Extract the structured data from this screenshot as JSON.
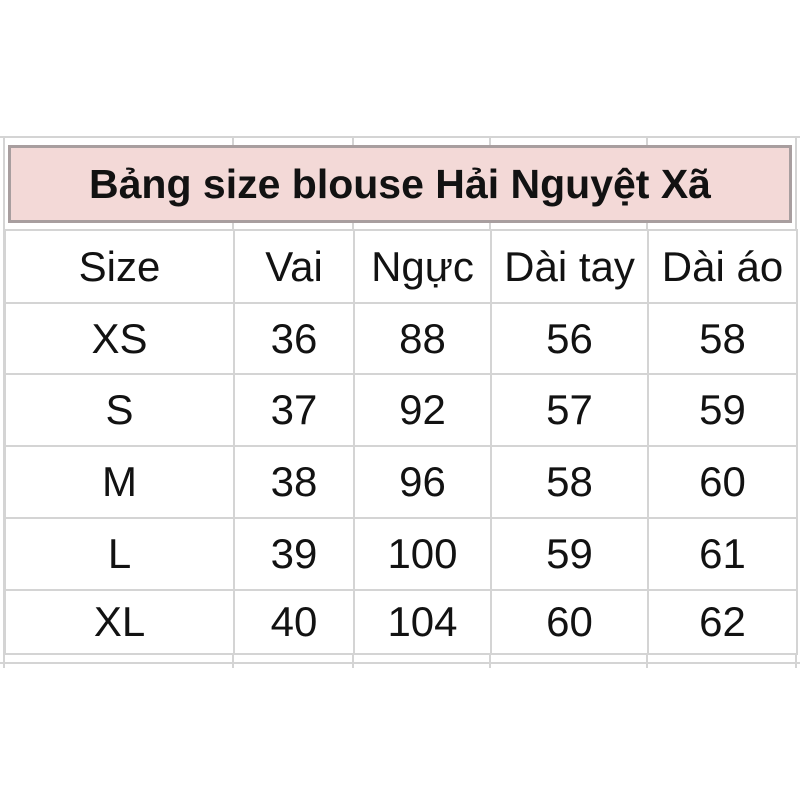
{
  "chart_data": {
    "type": "table",
    "title": "Bảng size blouse Hải Nguyệt Xã",
    "columns": [
      "Size",
      "Vai",
      "Ngực",
      "Dài tay",
      "Dài áo"
    ],
    "rows": [
      [
        "XS",
        "36",
        "88",
        "56",
        "58"
      ],
      [
        "S",
        "37",
        "92",
        "57",
        "59"
      ],
      [
        "M",
        "38",
        "96",
        "58",
        "60"
      ],
      [
        "L",
        "39",
        "100",
        "59",
        "61"
      ],
      [
        "XL",
        "40",
        "104",
        "60",
        "62"
      ]
    ]
  },
  "colors": {
    "banner_fill": "#f3d9d7",
    "banner_border": "#a89e9f",
    "gridline": "#d4d4d4",
    "text": "#121212"
  }
}
